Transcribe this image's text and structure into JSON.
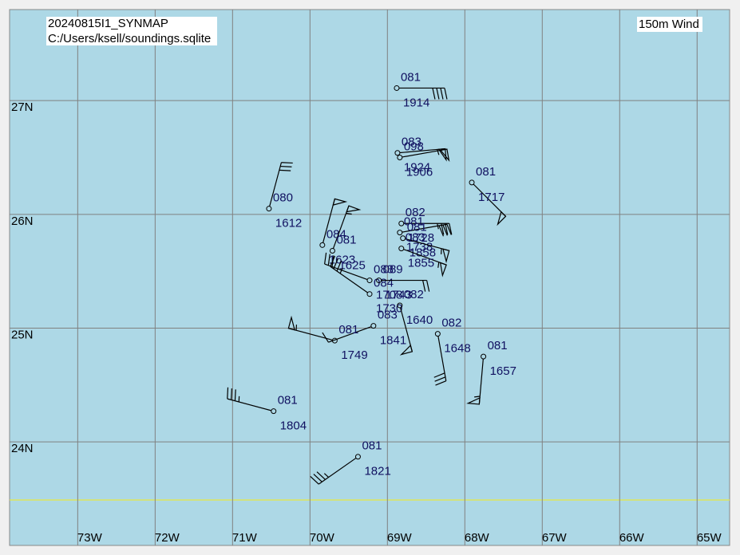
{
  "map": {
    "title": "20240815I1_SYNMAP",
    "source": "C:/Users/ksell/soundings.sqlite",
    "legend": "150m Wind",
    "xlim": [
      -73.88,
      -64.58
    ],
    "ylim": [
      23.09,
      27.8
    ],
    "xticks": [
      {
        "value": -73,
        "label": "73W"
      },
      {
        "value": -72,
        "label": "72W"
      },
      {
        "value": -71,
        "label": "71W"
      },
      {
        "value": -70,
        "label": "70W"
      },
      {
        "value": -69,
        "label": "69W"
      },
      {
        "value": -68,
        "label": "68W"
      },
      {
        "value": -67,
        "label": "67W"
      },
      {
        "value": -66,
        "label": "66W"
      },
      {
        "value": -65,
        "label": "65W"
      }
    ],
    "yticks": [
      {
        "value": 24,
        "label": "24N"
      },
      {
        "value": 25,
        "label": "25N"
      },
      {
        "value": 26,
        "label": "26N"
      },
      {
        "value": 27,
        "label": "27N"
      }
    ],
    "stations": [
      {
        "lon": -68.88,
        "lat": 27.11,
        "id": "081",
        "time": "1914",
        "dir": 90,
        "speed": 40
      },
      {
        "lon": -68.87,
        "lat": 26.54,
        "id": "083",
        "time": "1924",
        "dir": 85,
        "speed": 55
      },
      {
        "lon": -68.84,
        "lat": 26.5,
        "id": "098",
        "time": "1906",
        "dir": 80,
        "speed": 50
      },
      {
        "lon": -67.91,
        "lat": 26.28,
        "id": "081",
        "time": "1717",
        "dir": 135,
        "speed": 50
      },
      {
        "lon": -70.53,
        "lat": 26.05,
        "id": "080",
        "time": "1612",
        "dir": 15,
        "speed": 30
      },
      {
        "lon": -68.82,
        "lat": 25.92,
        "id": "082",
        "time": "1728",
        "dir": 90,
        "speed": 35
      },
      {
        "lon": -68.84,
        "lat": 25.84,
        "id": "081",
        "time": "1738",
        "dir": 80,
        "speed": 30
      },
      {
        "lon": -69.84,
        "lat": 25.73,
        "id": "084",
        "time": "1623",
        "dir": 15,
        "speed": 50
      },
      {
        "lon": -69.71,
        "lat": 25.68,
        "id": "081",
        "time": "1625",
        "dir": 20,
        "speed": 55
      },
      {
        "lon": -68.8,
        "lat": 25.79,
        "id": "081",
        "time": "1858",
        "dir": 105,
        "speed": 55
      },
      {
        "lon": -68.82,
        "lat": 25.7,
        "id": "083",
        "time": "1855",
        "dir": 110,
        "speed": 55
      },
      {
        "lon": -69.23,
        "lat": 25.42,
        "id": "083",
        "time": "1708",
        "dir": 290,
        "speed": 30
      },
      {
        "lon": -69.23,
        "lat": 25.3,
        "id": "084",
        "time": "1730",
        "dir": 305,
        "speed": 35
      },
      {
        "lon": -69.11,
        "lat": 25.42,
        "id": "089",
        "time": "1743",
        "dir": 90,
        "speed": 20
      },
      {
        "lon": -68.84,
        "lat": 25.2,
        "id": "082",
        "time": "1640",
        "dir": 165,
        "speed": 50
      },
      {
        "lon": -69.18,
        "lat": 25.02,
        "id": "083",
        "time": "1841",
        "dir": 250,
        "speed": 10
      },
      {
        "lon": -69.68,
        "lat": 24.89,
        "id": "081",
        "time": "1749",
        "dir": 285,
        "speed": 55
      },
      {
        "lon": -68.35,
        "lat": 24.95,
        "id": "082",
        "time": "1648",
        "dir": 170,
        "speed": 30
      },
      {
        "lon": -67.76,
        "lat": 24.75,
        "id": "081",
        "time": "1657",
        "dir": 185,
        "speed": 55
      },
      {
        "lon": -70.47,
        "lat": 24.27,
        "id": "081",
        "time": "1804",
        "dir": 285,
        "speed": 35
      },
      {
        "lon": -69.38,
        "lat": 23.87,
        "id": "081",
        "time": "1821",
        "dir": 235,
        "speed": 35
      }
    ]
  }
}
